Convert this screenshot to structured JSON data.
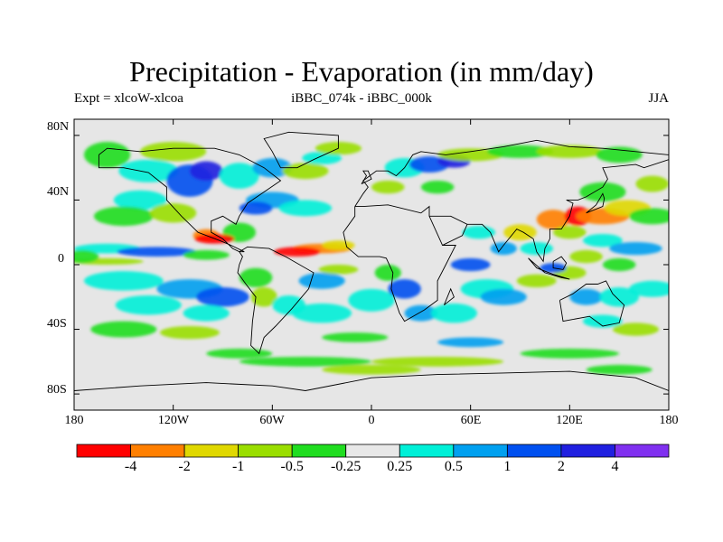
{
  "title": "Precipitation - Evaporation (in mm/day)",
  "expt_label": "Expt = xlcoW-xlcoa",
  "run_label": "iBBC_074k - iBBC_000k",
  "season_label": "JJA",
  "lat_ticks": [
    "80N",
    "40N",
    "0",
    "40S",
    "80S"
  ],
  "lon_ticks": [
    "180",
    "120W",
    "60W",
    "0",
    "60E",
    "120E",
    "180"
  ],
  "colorbar": {
    "colors": [
      "#ff0000",
      "#ff7f00",
      "#e0d800",
      "#9ade00",
      "#20dd20",
      "#e8e8e8",
      "#00f0d8",
      "#00a0f0",
      "#0050f0",
      "#2020e0",
      "#8030f0"
    ],
    "labels": [
      "-4",
      "-2",
      "-1",
      "-0.5",
      "-0.25",
      "0.25",
      "0.5",
      "1",
      "2",
      "4"
    ]
  },
  "colors": {
    "land": "#e6e6e6",
    "coast": "#000000"
  }
}
